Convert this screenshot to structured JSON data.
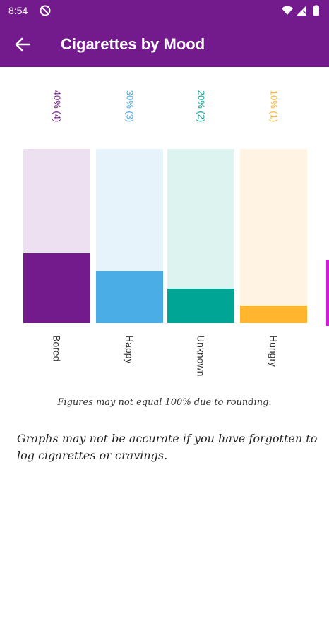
{
  "status_bar": {
    "time": "8:54",
    "icons": [
      "sync-off-icon",
      "wifi-icon",
      "signal-icon",
      "battery-icon"
    ]
  },
  "app_bar": {
    "title": "Cigarettes by Mood",
    "back_icon": "arrow-left-icon",
    "color": "#731b8c"
  },
  "chart_data": {
    "type": "bar",
    "title": "",
    "categories": [
      "Bored",
      "Happy",
      "Unknown",
      "Hungry"
    ],
    "values": [
      40,
      30,
      20,
      10
    ],
    "counts": [
      4,
      3,
      2,
      1
    ],
    "value_labels": [
      "40% (4)",
      "30% (3)",
      "20% (2)",
      "10% (1)"
    ],
    "colors": [
      "#731b8c",
      "#4aade6",
      "#00a595",
      "#ffb52e"
    ],
    "track_colors": [
      "#ede1f1",
      "#e6f3fb",
      "#dcf3f0",
      "#fff3e4"
    ],
    "ylim": [
      0,
      100
    ],
    "orientation": "vertical",
    "grid": false,
    "legend": "none"
  },
  "notes": {
    "rounding": "Figures may not equal 100% due to rounding.",
    "accuracy": "Graphs may not be accurate if you have forgotten to log cigarettes or cravings."
  }
}
